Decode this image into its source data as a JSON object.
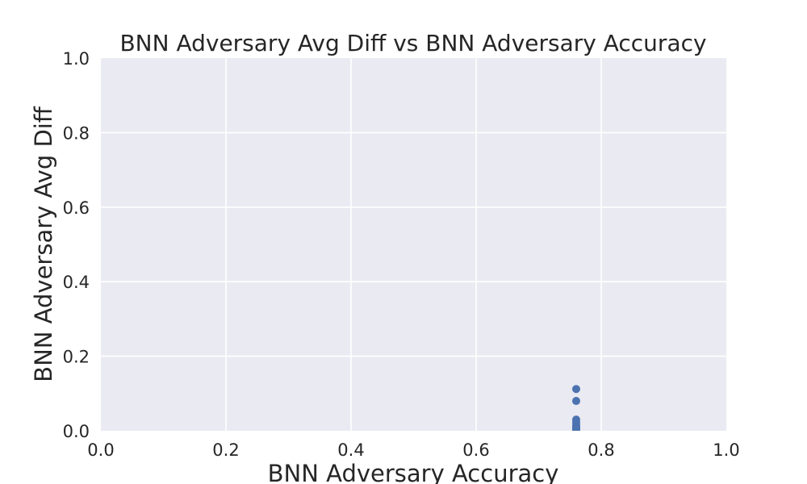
{
  "chart_data": {
    "type": "scatter",
    "title": "BNN Adversary Avg Diff vs BNN Adversary Accuracy",
    "xlabel": "BNN Adversary Accuracy",
    "ylabel": "BNN Adversary Avg Diff",
    "xlim": [
      0.0,
      1.0
    ],
    "ylim": [
      0.0,
      1.0
    ],
    "x_ticks": [
      "0.0",
      "0.2",
      "0.4",
      "0.6",
      "0.8",
      "1.0"
    ],
    "y_ticks": [
      "0.0",
      "0.2",
      "0.4",
      "0.6",
      "0.8",
      "1.0"
    ],
    "grid": true,
    "legend": "none",
    "series": [
      {
        "color": "#4c72b0",
        "points": [
          {
            "x": 0.76,
            "y": 0.112
          },
          {
            "x": 0.76,
            "y": 0.08
          },
          {
            "x": 0.76,
            "y": 0.03
          },
          {
            "x": 0.76,
            "y": 0.022
          },
          {
            "x": 0.76,
            "y": 0.015
          },
          {
            "x": 0.76,
            "y": 0.01
          },
          {
            "x": 0.76,
            "y": 0.006
          },
          {
            "x": 0.76,
            "y": 0.003
          },
          {
            "x": 0.76,
            "y": 0.001
          }
        ]
      }
    ],
    "colors": {
      "plot_background": "#eaeaf2",
      "grid": "#ffffff",
      "text": "#262626"
    }
  }
}
